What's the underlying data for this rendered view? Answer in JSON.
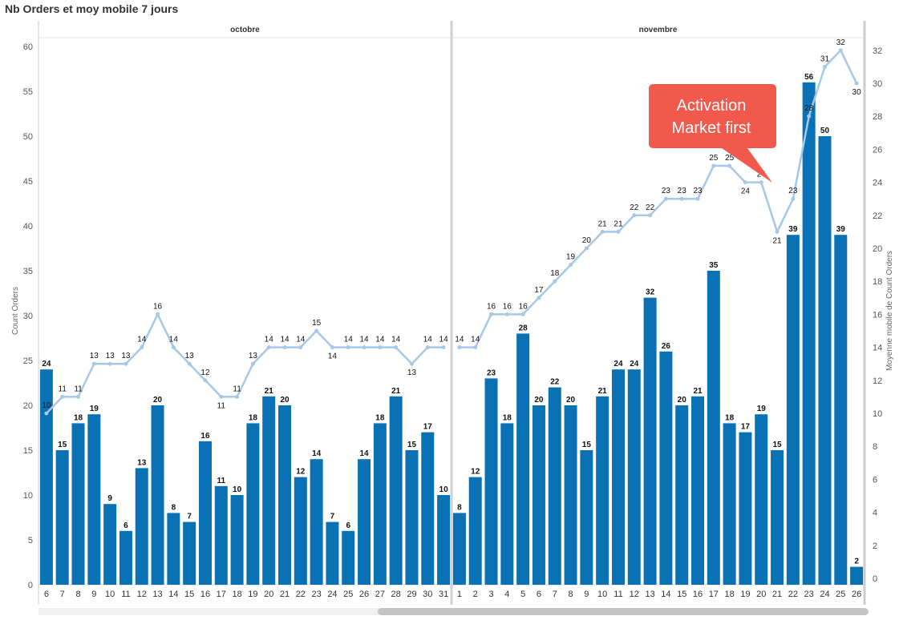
{
  "title": "Nb Orders et moy mobile 7 jours",
  "callout": {
    "line1": "Activation",
    "line2": "Market first"
  },
  "chart_data": {
    "type": "bar",
    "panels": [
      "octobre",
      "novembre"
    ],
    "x": [
      "6",
      "7",
      "8",
      "9",
      "10",
      "11",
      "12",
      "13",
      "14",
      "15",
      "16",
      "17",
      "18",
      "19",
      "20",
      "21",
      "22",
      "23",
      "24",
      "25",
      "26",
      "27",
      "28",
      "29",
      "30",
      "31",
      "1",
      "2",
      "3",
      "4",
      "5",
      "6",
      "7",
      "8",
      "9",
      "10",
      "11",
      "12",
      "13",
      "14",
      "15",
      "16",
      "17",
      "18",
      "19",
      "20",
      "21",
      "22",
      "23",
      "24",
      "25",
      "26"
    ],
    "series": [
      {
        "name": "Count Orders",
        "type": "bar",
        "axis": "left",
        "color": "#0a72b4",
        "values": [
          24,
          15,
          18,
          19,
          9,
          6,
          13,
          20,
          8,
          7,
          16,
          11,
          10,
          18,
          21,
          20,
          12,
          14,
          7,
          6,
          14,
          18,
          21,
          15,
          17,
          10,
          8,
          12,
          23,
          18,
          28,
          20,
          22,
          20,
          15,
          21,
          24,
          24,
          32,
          26,
          20,
          21,
          35,
          18,
          17,
          19,
          15,
          39,
          56,
          50,
          39,
          2
        ]
      },
      {
        "name": "Moyenne mobile de Count Orders",
        "type": "line",
        "axis": "right",
        "color": "#a6c8e6",
        "values": [
          10,
          11,
          11,
          13,
          13,
          13,
          14,
          16,
          14,
          13,
          12,
          11,
          11,
          13,
          14,
          14,
          14,
          15,
          14,
          14,
          14,
          14,
          14,
          13,
          14,
          14,
          14,
          14,
          16,
          16,
          16,
          17,
          18,
          19,
          20,
          21,
          21,
          22,
          22,
          23,
          23,
          23,
          25,
          25,
          24,
          24,
          21,
          23,
          28,
          31,
          32,
          30
        ]
      }
    ],
    "ylabel_left": "Count Orders",
    "ylabel_right": "Moyenne mobile de Count Orders",
    "ylim_left": [
      0,
      60
    ],
    "ylim_right": [
      0,
      32
    ],
    "yticks_left": [
      "0",
      "5",
      "10",
      "15",
      "20",
      "25",
      "30",
      "35",
      "40",
      "45",
      "50",
      "55",
      "60"
    ],
    "yticks_right": [
      "0",
      "2",
      "4",
      "6",
      "8",
      "10",
      "12",
      "14",
      "16",
      "18",
      "20",
      "22",
      "24",
      "26",
      "28",
      "30",
      "32"
    ],
    "grid": true,
    "legend": "none"
  }
}
